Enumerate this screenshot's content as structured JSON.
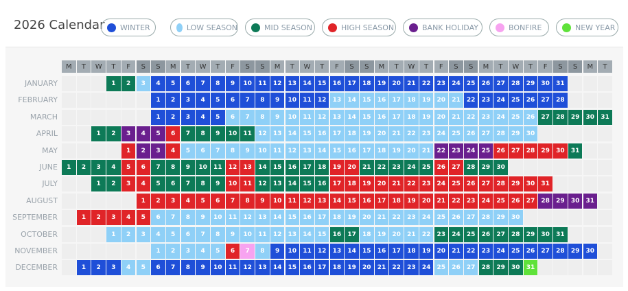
{
  "header": {
    "title": "2026 Calendar"
  },
  "legend": [
    {
      "name": "WINTER",
      "color": "#1f4fd8"
    },
    {
      "name": "LOW SEASON",
      "color": "#8fd0f7"
    },
    {
      "name": "MID SEASON",
      "color": "#0d7a57"
    },
    {
      "name": "HIGH SEASON",
      "color": "#e02428"
    },
    {
      "name": "BANK HOLIDAY",
      "color": "#6a1f8e"
    },
    {
      "name": "BONFIRE",
      "color": "#f7a3f0"
    },
    {
      "name": "NEW YEAR",
      "color": "#5fe23a"
    }
  ],
  "weekdays": [
    "M",
    "T",
    "W",
    "T",
    "F",
    "S",
    "S",
    "M",
    "T",
    "W",
    "T",
    "F",
    "S",
    "S",
    "M",
    "T",
    "W",
    "T",
    "F",
    "S",
    "S",
    "M",
    "T",
    "W",
    "T",
    "F",
    "S",
    "S",
    "M",
    "T",
    "W",
    "T",
    "F",
    "S",
    "S",
    "M",
    "T"
  ],
  "months": [
    {
      "name": "JANUARY",
      "days": [
        null,
        null,
        null,
        1,
        2,
        3,
        4,
        5,
        6,
        7,
        8,
        9,
        10,
        11,
        12,
        13,
        14,
        15,
        16,
        17,
        18,
        19,
        20,
        21,
        22,
        23,
        24,
        25,
        26,
        27,
        28,
        29,
        30,
        31
      ],
      "seasons": "2210000000000000000000000000000"
    },
    {
      "name": "FEBRUARY",
      "days": [
        null,
        null,
        null,
        null,
        null,
        null,
        1,
        2,
        3,
        4,
        5,
        6,
        7,
        8,
        9,
        10,
        11,
        12,
        13,
        14,
        15,
        16,
        17,
        18,
        19,
        20,
        21,
        22,
        23,
        24,
        25,
        26,
        27,
        28
      ],
      "seasons": "0000000000001111111110000000"
    },
    {
      "name": "MARCH",
      "days": [
        null,
        null,
        null,
        null,
        null,
        null,
        1,
        2,
        3,
        4,
        5,
        6,
        7,
        8,
        9,
        10,
        11,
        12,
        13,
        14,
        15,
        16,
        17,
        18,
        19,
        20,
        21,
        22,
        23,
        24,
        25,
        26,
        27,
        28,
        29,
        30,
        31
      ],
      "seasons": "0000011111111111111111111122222"
    },
    {
      "name": "APRIL",
      "days": [
        null,
        null,
        1,
        2,
        3,
        4,
        5,
        6,
        7,
        8,
        9,
        10,
        11,
        12,
        13,
        14,
        15,
        16,
        17,
        18,
        19,
        20,
        21,
        22,
        23,
        24,
        25,
        26,
        27,
        28,
        29,
        30
      ],
      "seasons": "224443222221111111111111111111"
    },
    {
      "name": "MAY",
      "days": [
        null,
        null,
        null,
        null,
        1,
        2,
        3,
        4,
        5,
        6,
        7,
        8,
        9,
        10,
        11,
        12,
        13,
        14,
        15,
        16,
        17,
        18,
        19,
        20,
        21,
        22,
        23,
        24,
        25,
        26,
        27,
        28,
        29,
        30,
        31
      ],
      "seasons": "3443111111111111111114444333332"
    },
    {
      "name": "JUNE",
      "days": [
        1,
        2,
        3,
        4,
        5,
        6,
        7,
        8,
        9,
        10,
        11,
        12,
        13,
        14,
        15,
        16,
        17,
        18,
        19,
        20,
        21,
        22,
        23,
        24,
        25,
        26,
        27,
        28,
        29,
        30
      ],
      "seasons": "222233222223322222332222233222"
    },
    {
      "name": "JULY",
      "days": [
        null,
        null,
        1,
        2,
        3,
        4,
        5,
        6,
        7,
        8,
        9,
        10,
        11,
        12,
        13,
        14,
        15,
        16,
        17,
        18,
        19,
        20,
        21,
        22,
        23,
        24,
        25,
        26,
        27,
        28,
        29,
        30,
        31
      ],
      "seasons": "2233222223322222333333333333333"
    },
    {
      "name": "AUGUST",
      "days": [
        null,
        null,
        null,
        null,
        null,
        1,
        2,
        3,
        4,
        5,
        6,
        7,
        8,
        9,
        10,
        11,
        12,
        13,
        14,
        15,
        16,
        17,
        18,
        19,
        20,
        21,
        22,
        23,
        24,
        25,
        26,
        27,
        28,
        29,
        30,
        31
      ],
      "seasons": "3333333333333333333333333334444"
    },
    {
      "name": "SEPTEMBER",
      "days": [
        null,
        1,
        2,
        3,
        4,
        5,
        6,
        7,
        8,
        9,
        10,
        11,
        12,
        13,
        14,
        15,
        16,
        17,
        18,
        19,
        20,
        21,
        22,
        23,
        24,
        25,
        26,
        27,
        28,
        29,
        30
      ],
      "seasons": "333331111111111111111111111111"
    },
    {
      "name": "OCTOBER",
      "days": [
        null,
        null,
        null,
        1,
        2,
        3,
        4,
        5,
        6,
        7,
        8,
        9,
        10,
        11,
        12,
        13,
        14,
        15,
        16,
        17,
        18,
        19,
        20,
        21,
        22,
        23,
        24,
        25,
        26,
        27,
        28,
        29,
        30,
        31
      ],
      "seasons": "1111111111111112211111222222222"
    },
    {
      "name": "NOVEMBER",
      "days": [
        null,
        null,
        null,
        null,
        null,
        null,
        1,
        2,
        3,
        4,
        5,
        6,
        7,
        8,
        9,
        10,
        11,
        12,
        13,
        14,
        15,
        16,
        17,
        18,
        19,
        20,
        21,
        22,
        23,
        24,
        25,
        26,
        27,
        28,
        29,
        30
      ],
      "seasons": "111113510000000000000000000000"
    },
    {
      "name": "DECEMBER",
      "days": [
        null,
        1,
        2,
        3,
        4,
        5,
        6,
        7,
        8,
        9,
        10,
        11,
        12,
        13,
        14,
        15,
        16,
        17,
        18,
        19,
        20,
        21,
        22,
        23,
        24,
        25,
        26,
        27,
        28,
        29,
        30,
        31
      ],
      "seasons": "0001100000000000000000001112226"
    }
  ]
}
